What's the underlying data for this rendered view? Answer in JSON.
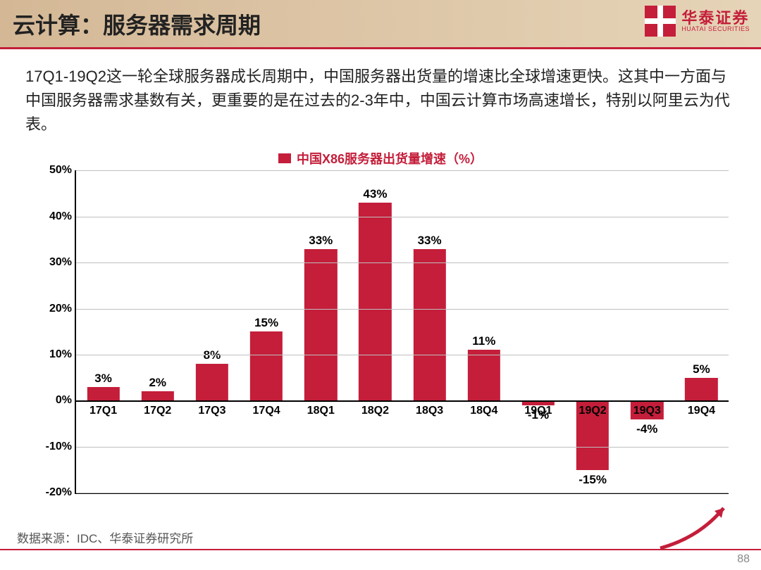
{
  "header": {
    "title": "云计算：服务器需求周期",
    "logo": {
      "cn": "华泰证券",
      "en": "HUATAI SECURITIES",
      "color": "#c41e3a"
    }
  },
  "body_text": "17Q1-19Q2这一轮全球服务器成长周期中，中国服务器出货量的增速比全球增速更快。这其中一方面与中国服务器需求基数有关，更重要的是在过去的2-3年中，中国云计算市场高速增长，特别以阿里云为代表。",
  "chart": {
    "type": "bar",
    "legend_label": "中国X86服务器出货量增速（%）",
    "legend_color": "#c41e3a",
    "bar_color": "#c41e3a",
    "bar_width_pct": 60,
    "background_color": "#ffffff",
    "grid_color": "#bfbfbf",
    "axis_color": "#000000",
    "ylim": [
      -20,
      50
    ],
    "ytick_step": 10,
    "ytick_format_suffix": "%",
    "label_fontsize": 16,
    "value_label_fontsize": 17,
    "categories": [
      "17Q1",
      "17Q2",
      "17Q3",
      "17Q4",
      "18Q1",
      "18Q2",
      "18Q3",
      "18Q4",
      "19Q1",
      "19Q2",
      "19Q3",
      "19Q4"
    ],
    "values": [
      3,
      2,
      8,
      15,
      33,
      43,
      33,
      11,
      -1,
      -15,
      -4,
      5
    ],
    "value_labels": [
      "3%",
      "2%",
      "8%",
      "15%",
      "33%",
      "43%",
      "33%",
      "11%",
      "-1%",
      "-15%",
      "-4%",
      "5%"
    ]
  },
  "source_label": "数据来源：IDC、华泰证券研究所",
  "page_number": "88",
  "accent_color": "#c41e3a"
}
